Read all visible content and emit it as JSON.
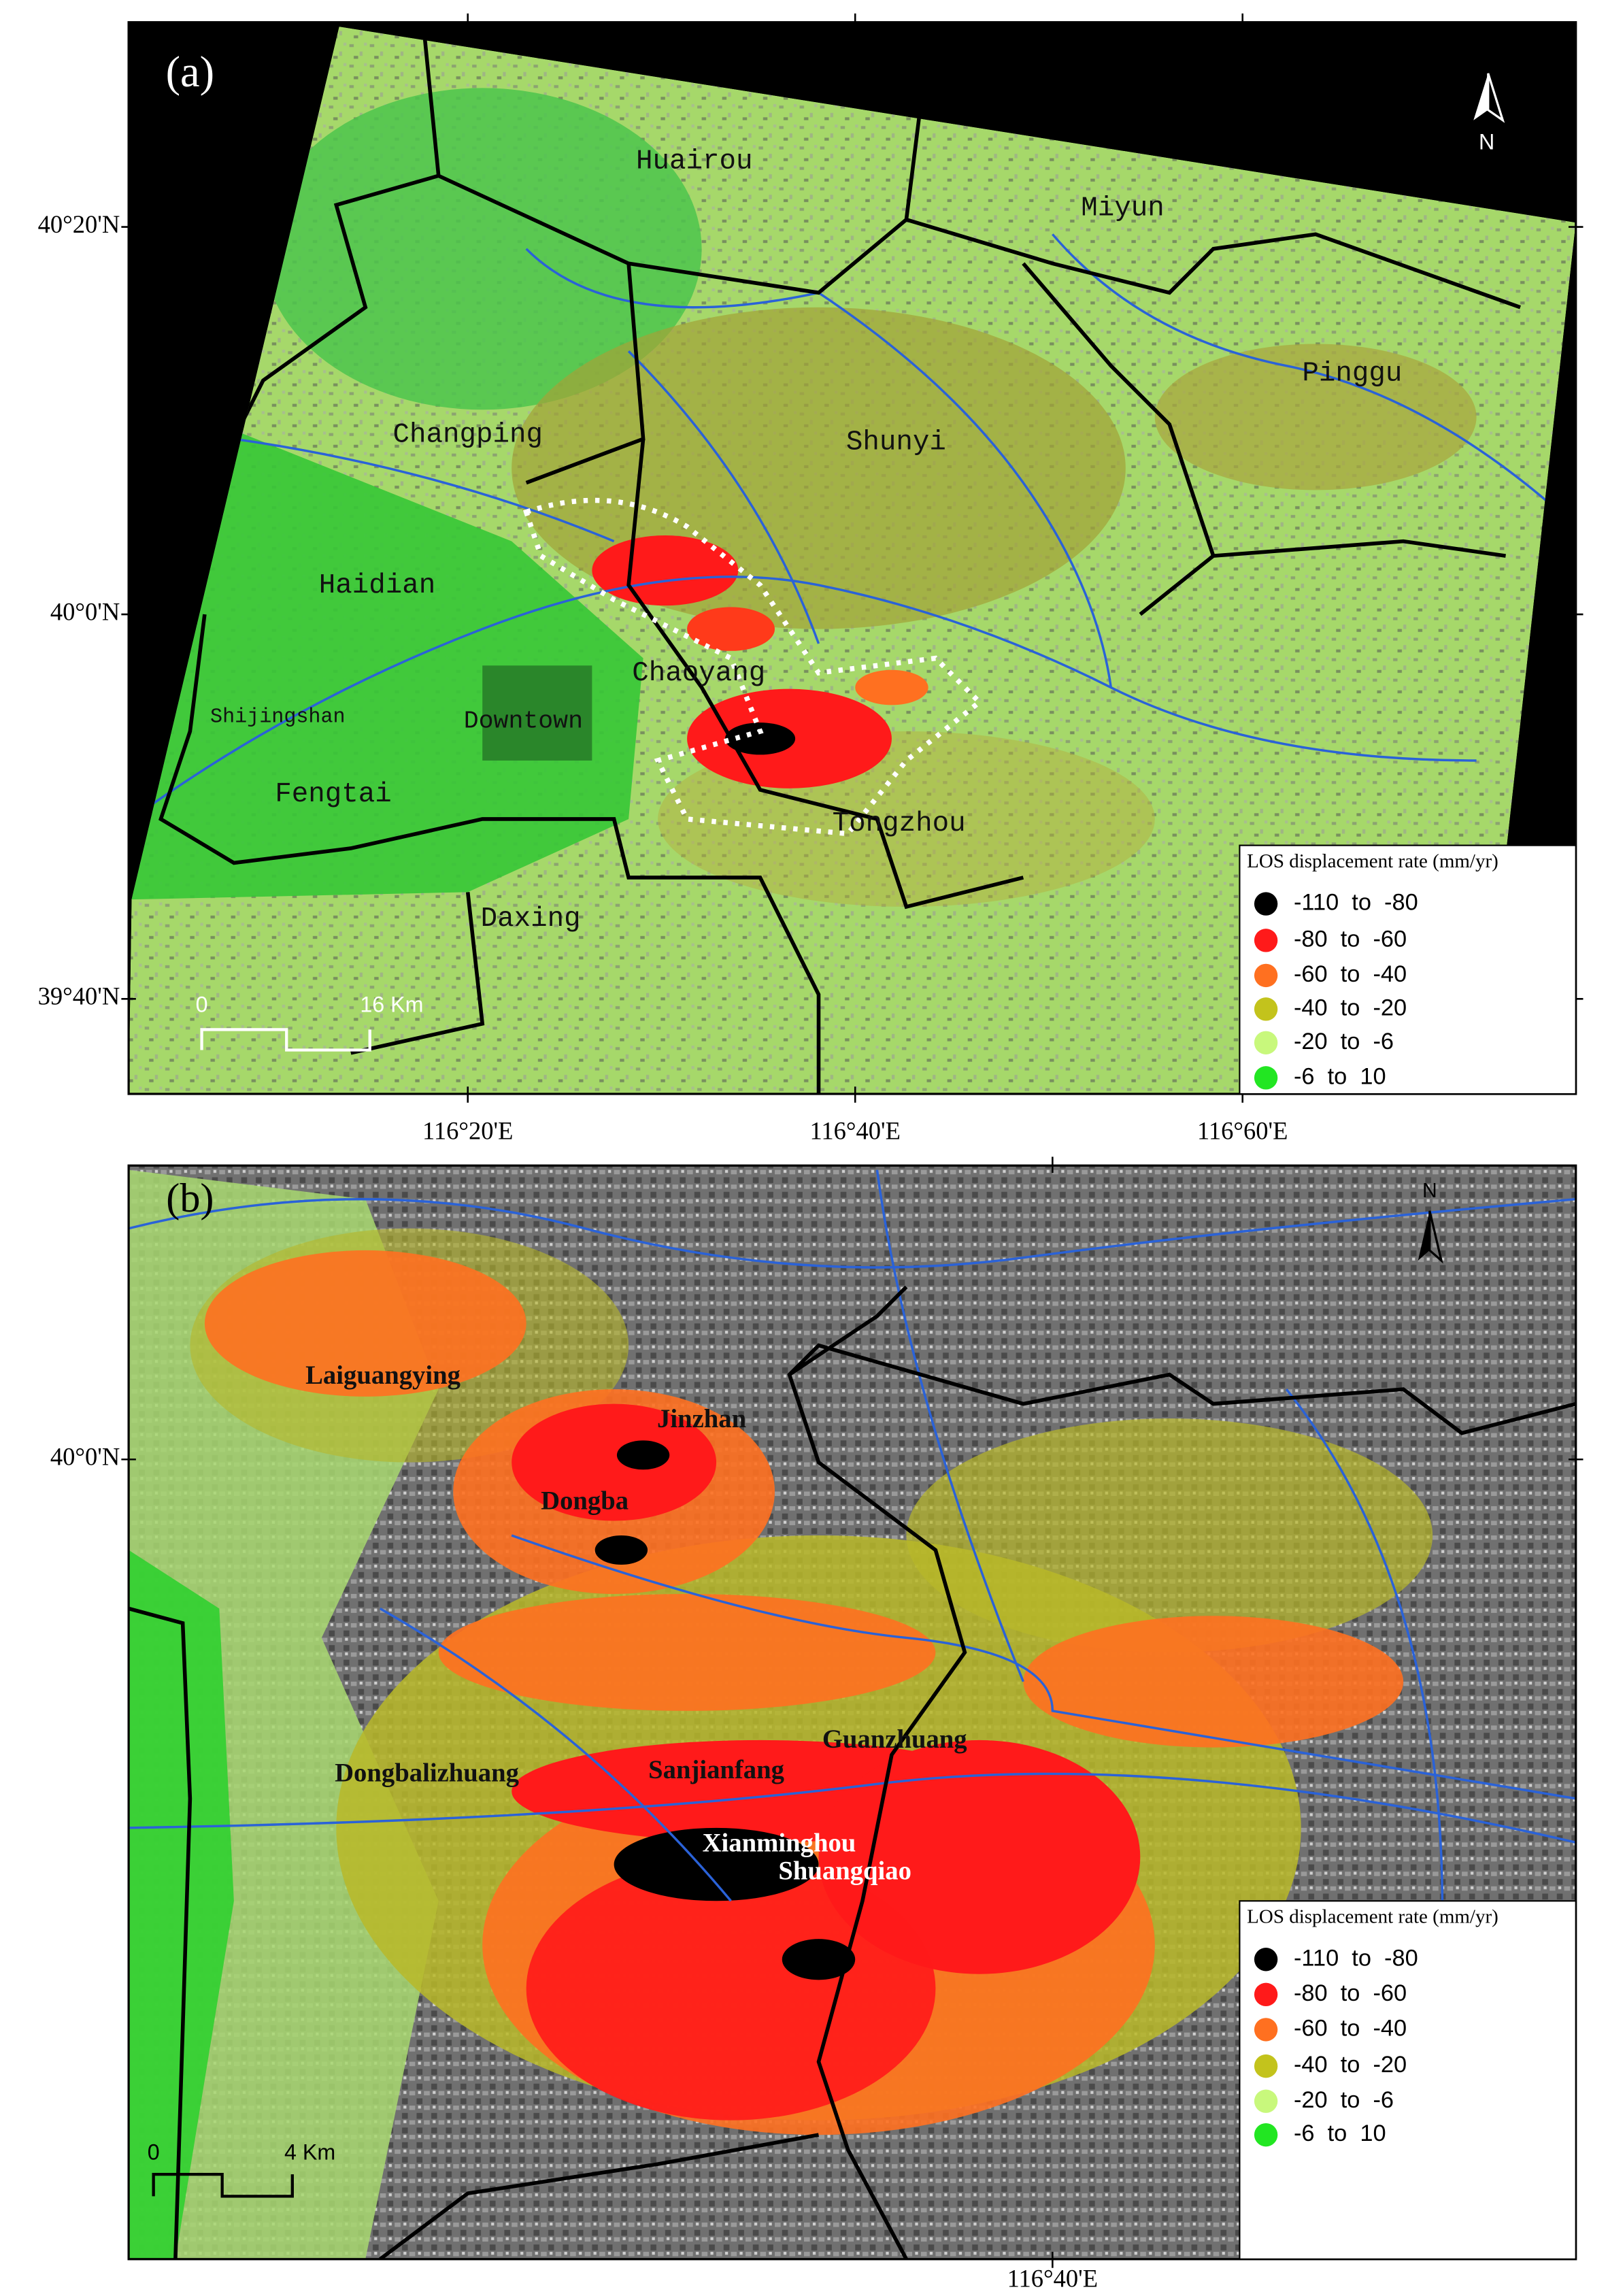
{
  "panels": [
    {
      "label": "(a)",
      "lat_ticks": [
        "40°20'N",
        "40°0'N",
        "39°40'N"
      ],
      "lon_ticks": [
        "116°20'E",
        "116°40'E",
        "116°60'E"
      ],
      "north": "N",
      "places": [
        "Huairou",
        "Miyun",
        "Pinggu",
        "Changping",
        "Shunyi",
        "Haidian",
        "Chaoyang",
        "Shijingshan",
        "Downtown",
        "Fengtai",
        "Tongzhou",
        "Daxing"
      ],
      "scale": {
        "zero": "0",
        "distance": "16 Km"
      },
      "legend": {
        "title": "LOS displacement rate (mm/yr)",
        "classes": [
          {
            "label": "-110  to  -80",
            "color": "#000000"
          },
          {
            "label": "-80  to  -60",
            "color": "#ff1a1a"
          },
          {
            "label": "-60  to  -40",
            "color": "#ff7020"
          },
          {
            "label": "-40  to  -20",
            "color": "#c3c31c"
          },
          {
            "label": "-20  to  -6",
            "color": "#c8f87c"
          },
          {
            "label": "-6  to  10",
            "color": "#22e622"
          }
        ]
      }
    },
    {
      "label": "(b)",
      "lat_ticks": [
        "40°0'N"
      ],
      "lon_ticks": [
        "116°40'E"
      ],
      "north": "N",
      "places": [
        "Laiguangying",
        "Jinzhan",
        "Dongba",
        "Guanzhuang",
        "Dongbalizhuang",
        "Sanjianfang",
        "Xianminghou",
        "Shuangqiao"
      ],
      "scale": {
        "zero": "0",
        "distance": "4 Km"
      },
      "legend": {
        "title": "LOS displacement rate (mm/yr)",
        "classes": [
          {
            "label": "-110  to  -80",
            "color": "#000000"
          },
          {
            "label": "-80  to  -60",
            "color": "#ff1a1a"
          },
          {
            "label": "-60  to  -40",
            "color": "#ff7020"
          },
          {
            "label": "-40  to  -20",
            "color": "#c3c31c"
          },
          {
            "label": "-20  to  -6",
            "color": "#c8f87c"
          },
          {
            "label": "-6  to  10",
            "color": "#22e622"
          }
        ]
      }
    }
  ]
}
